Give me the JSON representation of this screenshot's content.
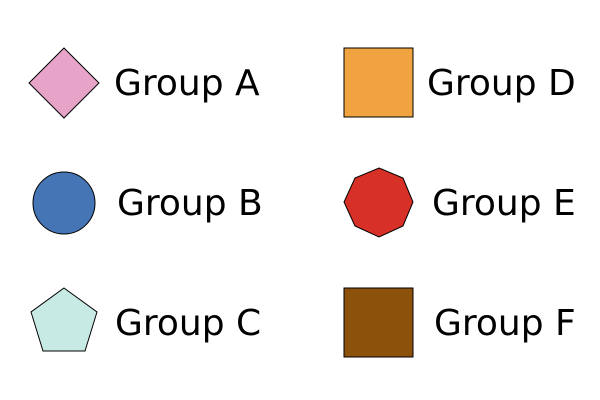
{
  "legend": {
    "items": [
      {
        "label": "Group A",
        "shape": "diamond",
        "color": "#E8A3C9"
      },
      {
        "label": "Group B",
        "shape": "circle",
        "color": "#4575B4"
      },
      {
        "label": "Group C",
        "shape": "pentagon",
        "color": "#C7EAE5"
      },
      {
        "label": "Group D",
        "shape": "square",
        "color": "#F1A340"
      },
      {
        "label": "Group E",
        "shape": "octagon",
        "color": "#D73027"
      },
      {
        "label": "Group F",
        "shape": "square",
        "color": "#8C510A"
      }
    ]
  }
}
